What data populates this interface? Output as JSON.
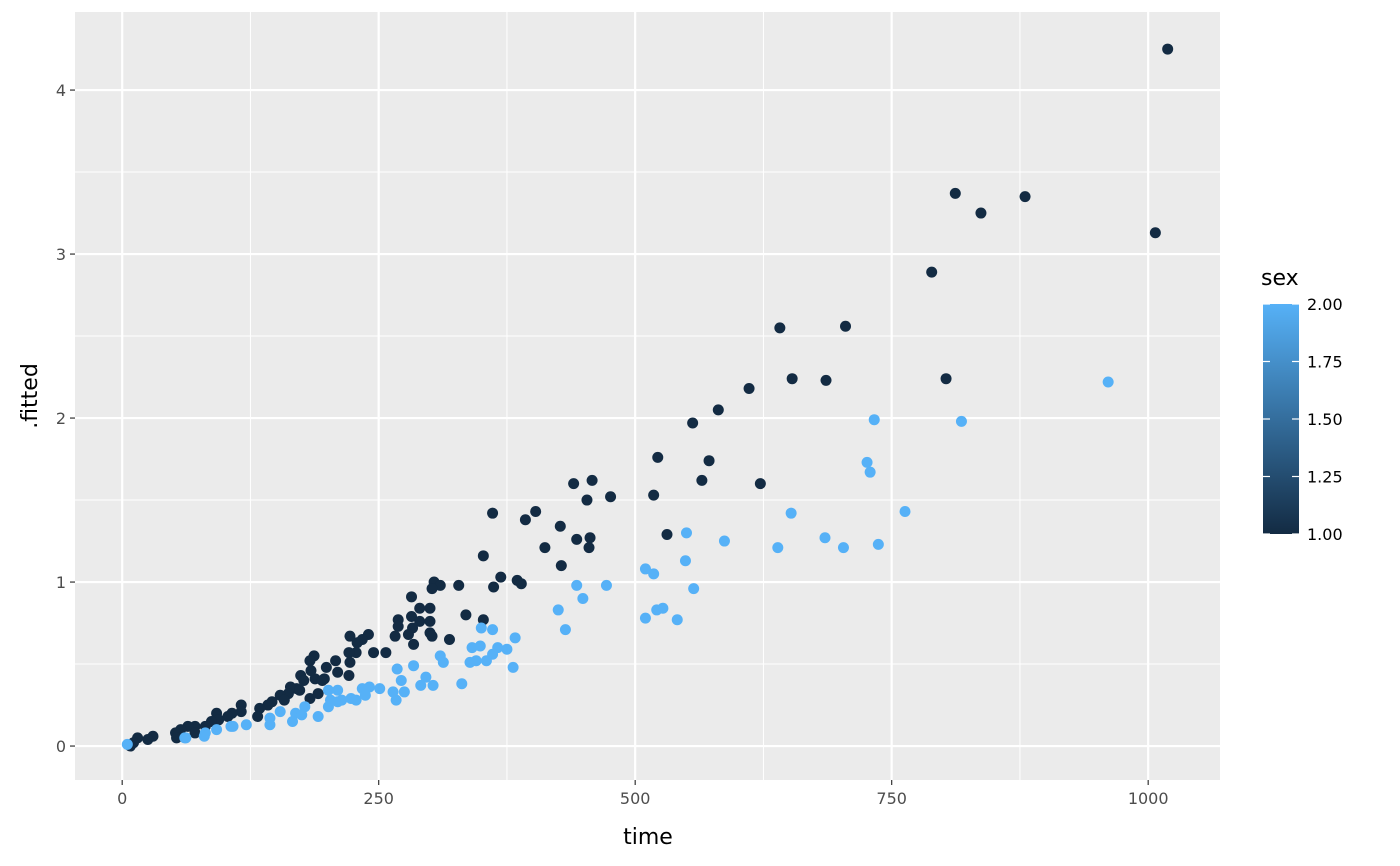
{
  "chart_data": {
    "type": "scatter",
    "xlabel": "time",
    "ylabel": ".fitted",
    "xlim": [
      -46,
      1070
    ],
    "ylim": [
      -0.207,
      4.476
    ],
    "xticks": [
      0,
      250,
      500,
      750,
      1000
    ],
    "yticks": [
      0,
      1,
      2,
      3,
      4
    ],
    "grid": true,
    "color_variable": "sex",
    "legend": {
      "title": "sex",
      "placement": "right",
      "ticks": [
        "1.00",
        "1.25",
        "1.50",
        "1.75",
        "2.00"
      ],
      "range": [
        1,
        2
      ],
      "low_color": "#132B43",
      "high_color": "#56B1F7"
    },
    "panel_background": "#EBEBEB",
    "columns": [
      "time",
      ".fitted",
      "sex"
    ],
    "points": [
      [
        1019,
        4.25,
        1
      ],
      [
        812,
        3.37,
        1
      ],
      [
        837,
        3.25,
        1
      ],
      [
        880,
        3.35,
        1
      ],
      [
        1007,
        3.13,
        1
      ],
      [
        789,
        2.89,
        1
      ],
      [
        641,
        2.55,
        1
      ],
      [
        705,
        2.56,
        1
      ],
      [
        803,
        2.24,
        1
      ],
      [
        653,
        2.24,
        1
      ],
      [
        686,
        2.23,
        1
      ],
      [
        611,
        2.18,
        1
      ],
      [
        581,
        2.05,
        1
      ],
      [
        556,
        1.97,
        1
      ],
      [
        522,
        1.76,
        1
      ],
      [
        572,
        1.74,
        1
      ],
      [
        565,
        1.62,
        1
      ],
      [
        458,
        1.62,
        1
      ],
      [
        440,
        1.6,
        1
      ],
      [
        622,
        1.6,
        1
      ],
      [
        518,
        1.53,
        1
      ],
      [
        476,
        1.52,
        1
      ],
      [
        453,
        1.5,
        1
      ],
      [
        361,
        1.42,
        1
      ],
      [
        403,
        1.43,
        1
      ],
      [
        393,
        1.38,
        1
      ],
      [
        427,
        1.34,
        1
      ],
      [
        443,
        1.26,
        1
      ],
      [
        456,
        1.27,
        1
      ],
      [
        455,
        1.21,
        1
      ],
      [
        412,
        1.21,
        1
      ],
      [
        531,
        1.29,
        1
      ],
      [
        428,
        1.1,
        1
      ],
      [
        352,
        1.16,
        1
      ],
      [
        369,
        1.03,
        1
      ],
      [
        385,
        1.01,
        1
      ],
      [
        389,
        0.99,
        1
      ],
      [
        362,
        0.97,
        1
      ],
      [
        304,
        1.0,
        1
      ],
      [
        310,
        0.98,
        1
      ],
      [
        302,
        0.96,
        1
      ],
      [
        328,
        0.98,
        1
      ],
      [
        335,
        0.8,
        1
      ],
      [
        352,
        0.77,
        1
      ],
      [
        282,
        0.91,
        1
      ],
      [
        290,
        0.84,
        1
      ],
      [
        300,
        0.84,
        1
      ],
      [
        282,
        0.79,
        1
      ],
      [
        269,
        0.77,
        1
      ],
      [
        269,
        0.73,
        1
      ],
      [
        290,
        0.76,
        1
      ],
      [
        300,
        0.76,
        1
      ],
      [
        283,
        0.72,
        1
      ],
      [
        300,
        0.69,
        1
      ],
      [
        319,
        0.65,
        1
      ],
      [
        302,
        0.67,
        1
      ],
      [
        284,
        0.62,
        1
      ],
      [
        279,
        0.68,
        1
      ],
      [
        266,
        0.67,
        1
      ],
      [
        257,
        0.57,
        1
      ],
      [
        245,
        0.57,
        1
      ],
      [
        240,
        0.68,
        1
      ],
      [
        234,
        0.65,
        1
      ],
      [
        229,
        0.63,
        1
      ],
      [
        222,
        0.67,
        1
      ],
      [
        228,
        0.57,
        1
      ],
      [
        221,
        0.57,
        1
      ],
      [
        222,
        0.51,
        1
      ],
      [
        221,
        0.43,
        1
      ],
      [
        210,
        0.45,
        1
      ],
      [
        208,
        0.52,
        1
      ],
      [
        199,
        0.48,
        1
      ],
      [
        197,
        0.41,
        1
      ],
      [
        188,
        0.41,
        1
      ],
      [
        187,
        0.55,
        1
      ],
      [
        183,
        0.52,
        1
      ],
      [
        184,
        0.46,
        1
      ],
      [
        174,
        0.43,
        1
      ],
      [
        177,
        0.4,
        1
      ],
      [
        170,
        0.35,
        1
      ],
      [
        164,
        0.36,
        1
      ],
      [
        162,
        0.32,
        1
      ],
      [
        154,
        0.31,
        1
      ],
      [
        158,
        0.28,
        1
      ],
      [
        146,
        0.27,
        1
      ],
      [
        142,
        0.25,
        1
      ],
      [
        134,
        0.23,
        1
      ],
      [
        132,
        0.18,
        1
      ],
      [
        116,
        0.25,
        1
      ],
      [
        116,
        0.21,
        1
      ],
      [
        107,
        0.2,
        1
      ],
      [
        103,
        0.18,
        1
      ],
      [
        92,
        0.2,
        1
      ],
      [
        94,
        0.16,
        1
      ],
      [
        87,
        0.15,
        1
      ],
      [
        81,
        0.12,
        1
      ],
      [
        71,
        0.12,
        1
      ],
      [
        64,
        0.12,
        1
      ],
      [
        57,
        0.1,
        1
      ],
      [
        52,
        0.08,
        1
      ],
      [
        53,
        0.05,
        1
      ],
      [
        30,
        0.06,
        1
      ],
      [
        25,
        0.04,
        1
      ],
      [
        15,
        0.05,
        1
      ],
      [
        11,
        0.02,
        1
      ],
      [
        8,
        0.0,
        1
      ],
      [
        71,
        0.08,
        1
      ],
      [
        183,
        0.29,
        1
      ],
      [
        191,
        0.32,
        1
      ],
      [
        195,
        0.4,
        1
      ],
      [
        173,
        0.34,
        1
      ],
      [
        961,
        2.22,
        2
      ],
      [
        818,
        1.98,
        2
      ],
      [
        733,
        1.99,
        2
      ],
      [
        726,
        1.73,
        2
      ],
      [
        729,
        1.67,
        2
      ],
      [
        763,
        1.43,
        2
      ],
      [
        652,
        1.42,
        2
      ],
      [
        737,
        1.23,
        2
      ],
      [
        703,
        1.21,
        2
      ],
      [
        685,
        1.27,
        2
      ],
      [
        639,
        1.21,
        2
      ],
      [
        587,
        1.25,
        2
      ],
      [
        550,
        1.3,
        2
      ],
      [
        549,
        1.13,
        2
      ],
      [
        510,
        1.08,
        2
      ],
      [
        518,
        1.05,
        2
      ],
      [
        557,
        0.96,
        2
      ],
      [
        472,
        0.98,
        2
      ],
      [
        443,
        0.98,
        2
      ],
      [
        449,
        0.9,
        2
      ],
      [
        425,
        0.83,
        2
      ],
      [
        521,
        0.83,
        2
      ],
      [
        527,
        0.84,
        2
      ],
      [
        510,
        0.78,
        2
      ],
      [
        541,
        0.77,
        2
      ],
      [
        432,
        0.71,
        2
      ],
      [
        361,
        0.71,
        2
      ],
      [
        350,
        0.72,
        2
      ],
      [
        383,
        0.66,
        2
      ],
      [
        341,
        0.6,
        2
      ],
      [
        349,
        0.61,
        2
      ],
      [
        366,
        0.6,
        2
      ],
      [
        375,
        0.59,
        2
      ],
      [
        361,
        0.56,
        2
      ],
      [
        345,
        0.52,
        2
      ],
      [
        355,
        0.52,
        2
      ],
      [
        339,
        0.51,
        2
      ],
      [
        310,
        0.55,
        2
      ],
      [
        313,
        0.51,
        2
      ],
      [
        284,
        0.49,
        2
      ],
      [
        268,
        0.47,
        2
      ],
      [
        381,
        0.48,
        2
      ],
      [
        331,
        0.38,
        2
      ],
      [
        272,
        0.4,
        2
      ],
      [
        296,
        0.42,
        2
      ],
      [
        291,
        0.37,
        2
      ],
      [
        303,
        0.37,
        2
      ],
      [
        264,
        0.33,
        2
      ],
      [
        275,
        0.33,
        2
      ],
      [
        267,
        0.28,
        2
      ],
      [
        251,
        0.35,
        2
      ],
      [
        241,
        0.36,
        2
      ],
      [
        234,
        0.35,
        2
      ],
      [
        237,
        0.31,
        2
      ],
      [
        210,
        0.34,
        2
      ],
      [
        201,
        0.34,
        2
      ],
      [
        203,
        0.28,
        2
      ],
      [
        201,
        0.24,
        2
      ],
      [
        210,
        0.27,
        2
      ],
      [
        223,
        0.29,
        2
      ],
      [
        228,
        0.28,
        2
      ],
      [
        214,
        0.28,
        2
      ],
      [
        191,
        0.18,
        2
      ],
      [
        178,
        0.24,
        2
      ],
      [
        169,
        0.2,
        2
      ],
      [
        175,
        0.19,
        2
      ],
      [
        166,
        0.15,
        2
      ],
      [
        154,
        0.21,
        2
      ],
      [
        144,
        0.17,
        2
      ],
      [
        144,
        0.13,
        2
      ],
      [
        121,
        0.13,
        2
      ],
      [
        106,
        0.12,
        2
      ],
      [
        108,
        0.12,
        2
      ],
      [
        92,
        0.1,
        2
      ],
      [
        80,
        0.06,
        2
      ],
      [
        81,
        0.08,
        2
      ],
      [
        62,
        0.05,
        2
      ],
      [
        61,
        0.05,
        2
      ],
      [
        5,
        0.01,
        2
      ]
    ]
  }
}
